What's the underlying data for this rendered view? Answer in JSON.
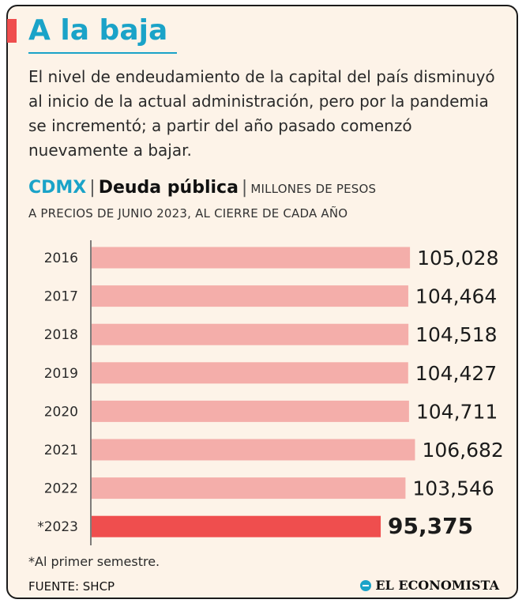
{
  "header": {
    "title": "A la baja",
    "lead": "El nivel de endeudamiento de la capital del país disminuyó al inicio de la actual administración, pero por la pandemia se incrementó; a partir del año pasado comenzó nuevamente a bajar.",
    "geo": "CDMX",
    "separator": "|",
    "topic": "Deuda pública",
    "units_line1": "MILLONES DE PESOS",
    "units_line2": "A PRECIOS DE JUNIO 2023, AL CIERRE DE CADA AÑO"
  },
  "chart_data": {
    "type": "bar",
    "orientation": "horizontal",
    "categories": [
      "2016",
      "2017",
      "2018",
      "2019",
      "2020",
      "2021",
      "2022",
      "*2023"
    ],
    "values": [
      105028,
      104464,
      104518,
      104427,
      104711,
      106682,
      103546,
      95375
    ],
    "value_labels": [
      "105,028",
      "104,464",
      "104,518",
      "104,427",
      "104,711",
      "106,682",
      "103,546",
      "95,375"
    ],
    "highlight_index": 7,
    "ylabel": "Millones de pesos",
    "colors": {
      "bar": "#f4aeaa",
      "highlight": "#ef4e4e"
    }
  },
  "footer": {
    "footnote": "*Al primer semestre.",
    "source": "FUENTE: SHCP",
    "brand": "EL ECONOMISTA"
  },
  "colors": {
    "accent": "#1aa3c8",
    "background": "#fdf3e8",
    "highlight": "#ef4e4e"
  }
}
